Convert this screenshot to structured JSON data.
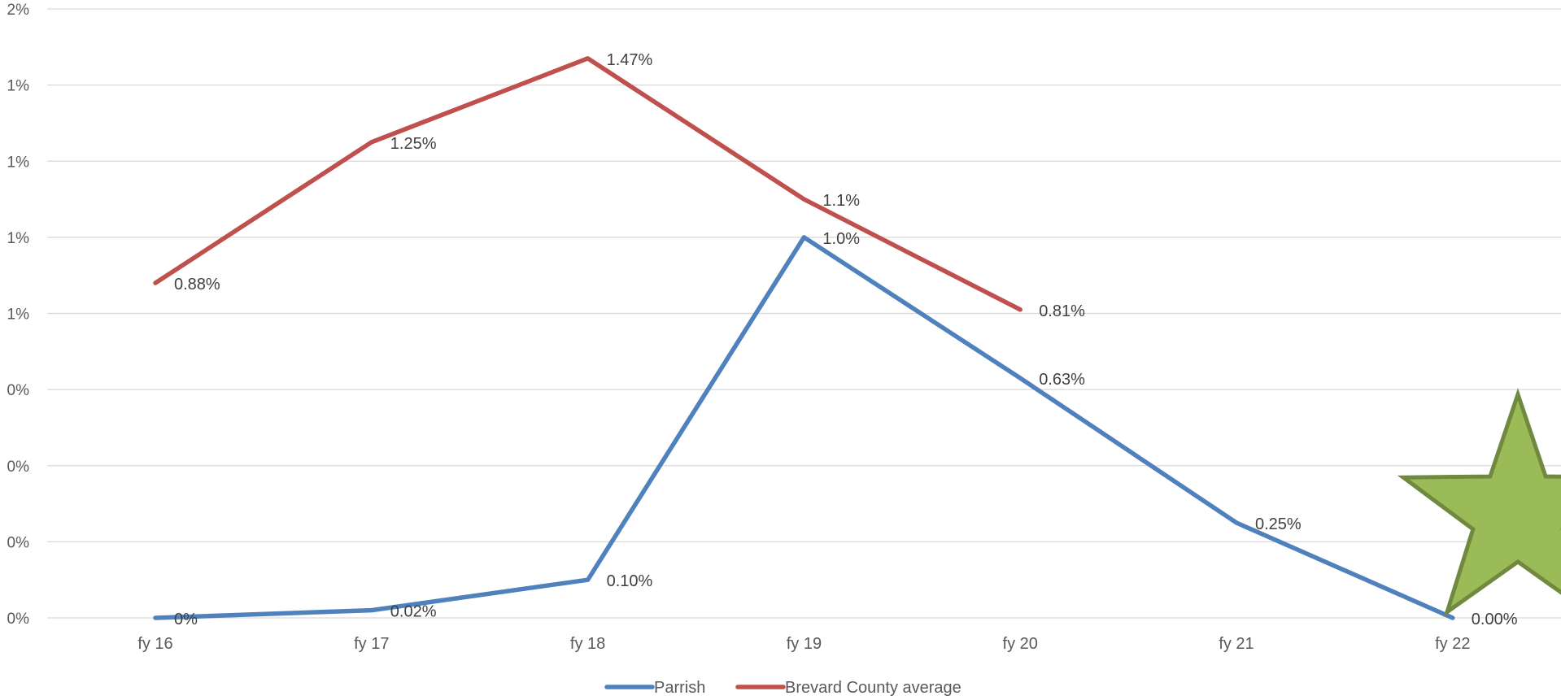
{
  "chart_data": {
    "type": "line",
    "title": "",
    "xlabel": "",
    "ylabel": "",
    "categories": [
      "fy 16",
      "fy 17",
      "fy 18",
      "fy 19",
      "fy 20",
      "fy 21",
      "fy 22"
    ],
    "ylim": [
      0,
      1.6
    ],
    "y_tick_values": [
      0,
      0.2,
      0.4,
      0.6,
      0.8,
      1.0,
      1.2,
      1.4,
      1.6
    ],
    "y_tick_labels": [
      "0%",
      "0%",
      "0%",
      "0%",
      "1%",
      "1%",
      "1%",
      "1%",
      "2%"
    ],
    "grid": true,
    "legend_position": "bottom",
    "series": [
      {
        "name": "Parrish",
        "color": "#4f81bd",
        "values": [
          0,
          0.02,
          0.1,
          1.0,
          0.63,
          0.25,
          0.0
        ],
        "labels": [
          "0%",
          "0.02%",
          "0.10%",
          "1.0%",
          "0.63%",
          "0.25%",
          "0.00%"
        ]
      },
      {
        "name": "Brevard County average",
        "color": "#c0504d",
        "values": [
          0.88,
          1.25,
          1.47,
          1.1,
          0.81,
          null,
          null
        ],
        "labels": [
          "0.88%",
          "1.25%",
          "1.47%",
          "1.1%",
          "0.81%",
          null,
          null
        ]
      }
    ],
    "annotation": {
      "shape": "star-icon",
      "fill": "#9bbb59",
      "stroke": "#71893f"
    }
  }
}
